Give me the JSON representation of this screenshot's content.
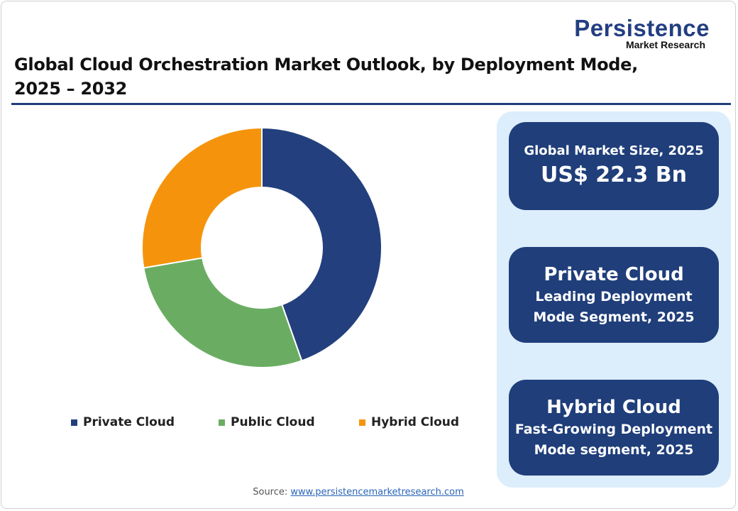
{
  "logo": {
    "name": "Persistence",
    "sub": "Market Research"
  },
  "title": "Global Cloud Orchestration Market Outlook, by Deployment Mode, 2025 – 2032",
  "chart_data": {
    "type": "pie",
    "donut": true,
    "categories": [
      "Private Cloud",
      "Public Cloud",
      "Hybrid Cloud"
    ],
    "values": [
      44.6,
      27.7,
      27.7
    ],
    "colors": [
      "#233f7d",
      "#6aad62",
      "#f5940c"
    ],
    "legend": "bottom"
  },
  "panel": {
    "card1": {
      "label": "Global Market Size, 2025",
      "value": "US$ 22.3 Bn"
    },
    "card2": {
      "heading": "Private Cloud",
      "line1": "Leading Deployment",
      "line2": "Mode Segment, 2025"
    },
    "card3": {
      "heading": "Hybrid Cloud",
      "line1": "Fast-Growing Deployment",
      "line2": "Mode segment, 2025"
    }
  },
  "source": {
    "label": "Source:",
    "link": "www.persistencemarketresearch.com"
  }
}
